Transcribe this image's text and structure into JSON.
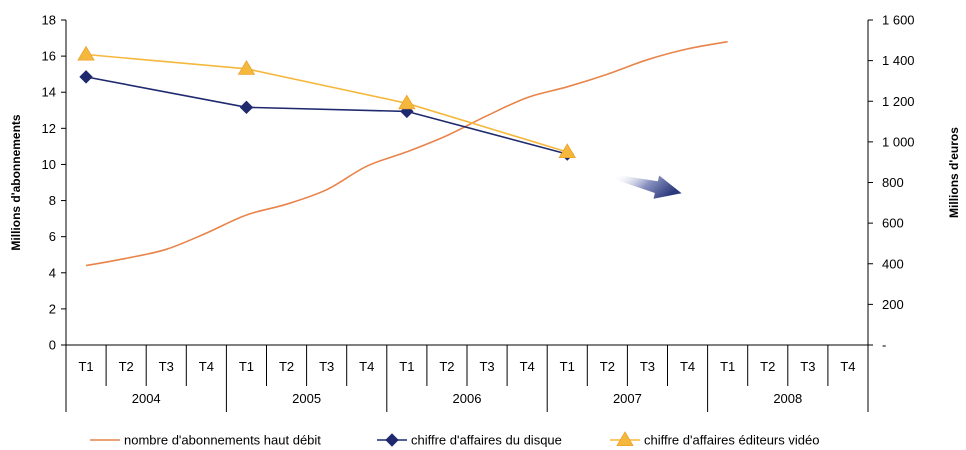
{
  "chart_data": {
    "type": "line",
    "title": "",
    "ylabel_left": "Millions d'abonnements",
    "ylabel_right": "Millions d'euros",
    "ylim_left": [
      0,
      18
    ],
    "ylim_right": [
      0,
      1600
    ],
    "yticks_left": [
      "0",
      "2",
      "4",
      "6",
      "8",
      "10",
      "12",
      "14",
      "16",
      "18"
    ],
    "yticks_right": [
      "-",
      "200",
      "400",
      "600",
      "800",
      "1 000",
      "1 200",
      "1 400",
      "1 600"
    ],
    "quarters": [
      "T1",
      "T2",
      "T3",
      "T4",
      "T1",
      "T2",
      "T3",
      "T4",
      "T1",
      "T2",
      "T3",
      "T4",
      "T1",
      "T2",
      "T3",
      "T4",
      "T1",
      "T2",
      "T3",
      "T4"
    ],
    "years": [
      "2004",
      "2005",
      "2006",
      "2007",
      "2008"
    ],
    "grid": false,
    "legend_position": "bottom",
    "series": [
      {
        "name": "nombre d'abonnements haut débit",
        "axis": "left",
        "color": "#e8844a",
        "marker": "none",
        "values": [
          4.4,
          4.8,
          5.3,
          6.2,
          7.2,
          7.8,
          8.6,
          9.9,
          10.7,
          11.6,
          12.7,
          13.7,
          14.3,
          15.0,
          15.8,
          16.4,
          16.8,
          null,
          null,
          null
        ]
      },
      {
        "name": "chiffre d'affaires du disque",
        "axis": "right",
        "color": "#1f2a6e",
        "marker": "diamond",
        "x_index": [
          0,
          4,
          8,
          12
        ],
        "values": [
          1320,
          1170,
          1150,
          940
        ]
      },
      {
        "name": "chiffre d'affaires éditeurs vidéo",
        "axis": "right",
        "color": "#f5b83c",
        "marker": "triangle",
        "x_index": [
          0,
          4,
          8,
          12
        ],
        "values": [
          1430,
          1360,
          1190,
          950
        ]
      }
    ],
    "annotations": [
      {
        "type": "arrow",
        "color": "#3a4a8c",
        "direction": "down-right",
        "quarter_span": [
          14,
          16
        ]
      }
    ]
  }
}
